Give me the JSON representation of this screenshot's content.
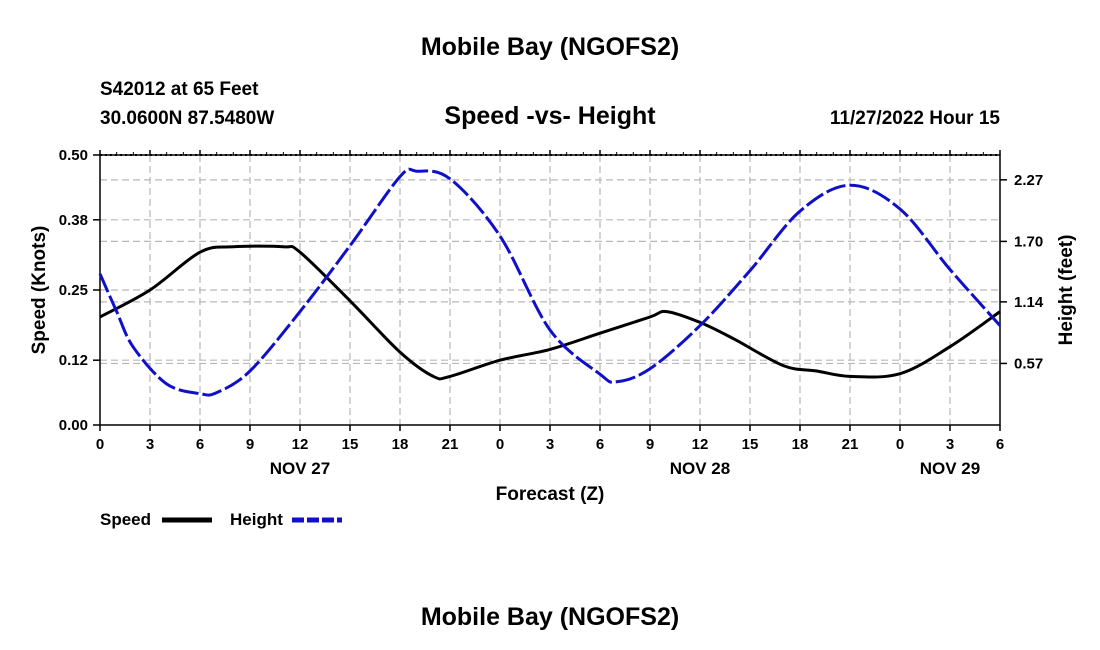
{
  "header": {
    "title": "Mobile Bay (NGOFS2)",
    "station": "S42012 at 65 Feet",
    "coords": "30.0600N  87.5480W",
    "subtitle": "Speed -vs- Height",
    "timestamp": "11/27/2022 Hour 15"
  },
  "footer": {
    "title": "Mobile Bay (NGOFS2)"
  },
  "chart_data": {
    "type": "line",
    "title": "Speed -vs- Height",
    "xlabel": "Forecast (Z)",
    "ylabel_left": "Speed (Knots)",
    "ylabel_right": "Height (feet)",
    "x_range_hours": [
      0,
      54
    ],
    "x_ticks": [
      0,
      3,
      6,
      9,
      12,
      15,
      18,
      21,
      24,
      27,
      30,
      33,
      36,
      39,
      42,
      45,
      48,
      51,
      54
    ],
    "x_tick_labels": [
      "0",
      "3",
      "6",
      "9",
      "12",
      "15",
      "18",
      "21",
      "0",
      "3",
      "6",
      "9",
      "12",
      "15",
      "18",
      "21",
      "0",
      "3",
      "6"
    ],
    "date_labels": [
      {
        "hour": 12,
        "label": "NOV 27"
      },
      {
        "hour": 36,
        "label": "NOV 28"
      },
      {
        "hour": 51,
        "label": "NOV 29"
      }
    ],
    "left_axis": {
      "ylim": [
        0,
        0.5
      ],
      "ticks": [
        0,
        0.12,
        0.25,
        0.38,
        0.5
      ],
      "tick_labels": [
        "0.00",
        "0.12",
        "0.25",
        "0.38",
        "0.50"
      ]
    },
    "right_axis": {
      "ylim": [
        0,
        2.5
      ],
      "ticks": [
        0.57,
        1.14,
        1.7,
        2.27
      ],
      "tick_labels": [
        "0.57",
        "1.14",
        "1.70",
        "2.27"
      ]
    },
    "grid": true,
    "series": [
      {
        "name": "Speed",
        "axis": "left",
        "color": "#000000",
        "dash": "solid",
        "x": [
          0,
          3,
          6,
          8,
          11,
          12,
          15,
          18,
          20,
          21,
          24,
          27,
          30,
          33,
          34,
          36,
          38,
          41,
          43,
          45,
          48,
          51,
          54
        ],
        "values": [
          0.2,
          0.25,
          0.32,
          0.33,
          0.33,
          0.32,
          0.23,
          0.135,
          0.09,
          0.09,
          0.12,
          0.14,
          0.17,
          0.2,
          0.21,
          0.19,
          0.16,
          0.11,
          0.1,
          0.09,
          0.095,
          0.145,
          0.21
        ]
      },
      {
        "name": "Height",
        "axis": "right",
        "color": "#1010C8",
        "dash": "dashed",
        "x": [
          0,
          1,
          2,
          4,
          6,
          7,
          9,
          12,
          15,
          18,
          19,
          21,
          24,
          27,
          30,
          31,
          33,
          36,
          39,
          42,
          45,
          48,
          51,
          54
        ],
        "values": [
          1.4,
          1.05,
          0.72,
          0.38,
          0.29,
          0.3,
          0.5,
          1.05,
          1.66,
          2.3,
          2.35,
          2.28,
          1.75,
          0.88,
          0.47,
          0.4,
          0.52,
          0.92,
          1.43,
          1.98,
          2.22,
          2.0,
          1.44,
          0.92
        ]
      }
    ],
    "legend": {
      "position": "bottom-left",
      "entries": [
        "Speed",
        "Height"
      ]
    }
  }
}
